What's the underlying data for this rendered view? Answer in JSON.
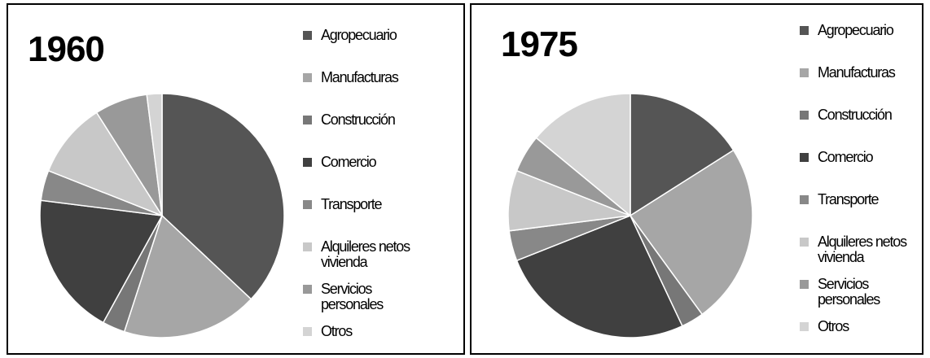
{
  "chart_data": [
    {
      "type": "pie",
      "title": "1960",
      "categories": [
        "Agropecuario",
        "Manufacturas",
        "Construcción",
        "Comercio",
        "Transporte",
        "Alquileres netos vivienda",
        "Servicios personales",
        "Otros"
      ],
      "values": [
        37,
        18,
        3,
        19,
        4,
        10,
        7,
        2
      ],
      "colors": [
        "#555555",
        "#a6a6a6",
        "#777777",
        "#404040",
        "#888888",
        "#c8c8c8",
        "#999999",
        "#d4d4d4"
      ]
    },
    {
      "type": "pie",
      "title": "1975",
      "categories": [
        "Agropecuario",
        "Manufacturas",
        "Construcción",
        "Comercio",
        "Transporte",
        "Alquileres netos vivienda",
        "Servicios personales",
        "Otros"
      ],
      "values": [
        16,
        24,
        3,
        26,
        4,
        8,
        5,
        14
      ],
      "colors": [
        "#555555",
        "#a6a6a6",
        "#777777",
        "#404040",
        "#888888",
        "#c8c8c8",
        "#999999",
        "#d4d4d4"
      ]
    }
  ]
}
